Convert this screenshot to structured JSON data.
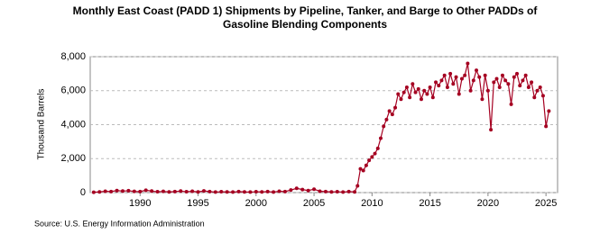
{
  "chart_data": {
    "type": "line",
    "title": "Monthly East Coast (PADD 1) Shipments by Pipeline, Tanker, and Barge to Other PADDs of",
    "subtitle": "Gasoline Blending Components",
    "y_label": "Thousand Barrels",
    "source": "Source: U.S. Energy Information Administration",
    "x": [
      1986,
      1986.5,
      1987,
      1987.5,
      1988,
      1988.5,
      1989,
      1989.5,
      1990,
      1990.5,
      1991,
      1991.5,
      1992,
      1992.5,
      1993,
      1993.5,
      1994,
      1994.5,
      1995,
      1995.5,
      1996,
      1996.5,
      1997,
      1997.5,
      1998,
      1998.5,
      1999,
      1999.5,
      2000,
      2000.5,
      2001,
      2001.5,
      2002,
      2002.5,
      2003,
      2003.5,
      2004,
      2004.5,
      2005,
      2005.5,
      2006,
      2006.5,
      2007,
      2007.5,
      2008,
      2008.5,
      2008.75,
      2009,
      2009.25,
      2009.5,
      2009.75,
      2010,
      2010.25,
      2010.5,
      2010.75,
      2011,
      2011.25,
      2011.5,
      2011.75,
      2012,
      2012.25,
      2012.5,
      2012.75,
      2013,
      2013.25,
      2013.5,
      2013.75,
      2014,
      2014.25,
      2014.5,
      2014.75,
      2015,
      2015.25,
      2015.5,
      2015.75,
      2016,
      2016.25,
      2016.5,
      2016.75,
      2017,
      2017.25,
      2017.5,
      2017.75,
      2018,
      2018.25,
      2018.5,
      2018.75,
      2019,
      2019.25,
      2019.5,
      2019.75,
      2020,
      2020.25,
      2020.5,
      2020.75,
      2021,
      2021.25,
      2021.5,
      2021.75,
      2022,
      2022.25,
      2022.5,
      2022.75,
      2023,
      2023.25,
      2023.5,
      2023.75,
      2024,
      2024.25,
      2024.5,
      2024.75,
      2025,
      2025.25
    ],
    "series": [
      {
        "name": "Shipments",
        "color": "#a50021",
        "values": [
          20,
          40,
          80,
          60,
          120,
          90,
          110,
          70,
          60,
          140,
          90,
          50,
          70,
          40,
          60,
          90,
          50,
          80,
          40,
          100,
          60,
          30,
          50,
          40,
          30,
          60,
          40,
          30,
          50,
          40,
          60,
          30,
          80,
          60,
          150,
          250,
          180,
          120,
          200,
          80,
          60,
          40,
          50,
          30,
          60,
          40,
          400,
          1400,
          1300,
          1600,
          1900,
          2100,
          2300,
          2600,
          3200,
          3900,
          4300,
          4800,
          4600,
          5000,
          5800,
          5500,
          5900,
          6200,
          5600,
          6400,
          5900,
          6100,
          5500,
          6000,
          5800,
          6200,
          5600,
          6500,
          6300,
          6600,
          6900,
          6200,
          7000,
          6400,
          6800,
          5800,
          6700,
          6900,
          7600,
          6000,
          6600,
          7200,
          6800,
          5500,
          6900,
          6000,
          3700,
          6500,
          6700,
          6200,
          6900,
          6600,
          6400,
          5200,
          6800,
          7000,
          6300,
          6600,
          6900,
          6200,
          6500,
          5600,
          6000,
          6200,
          5700,
          3900,
          4800
        ]
      }
    ],
    "xlim": [
      1985.7,
      2026
    ],
    "xticks": [
      1990,
      1995,
      2000,
      2005,
      2010,
      2015,
      2020,
      2025
    ],
    "ylim": [
      0,
      8000
    ],
    "yticks": [
      0,
      {
        "value": 2000,
        "label": "2,000"
      },
      {
        "value": 4000,
        "label": "4,000"
      },
      {
        "value": 6000,
        "label": "6,000"
      },
      {
        "value": 8000,
        "label": "8,000"
      }
    ],
    "grid": true
  }
}
